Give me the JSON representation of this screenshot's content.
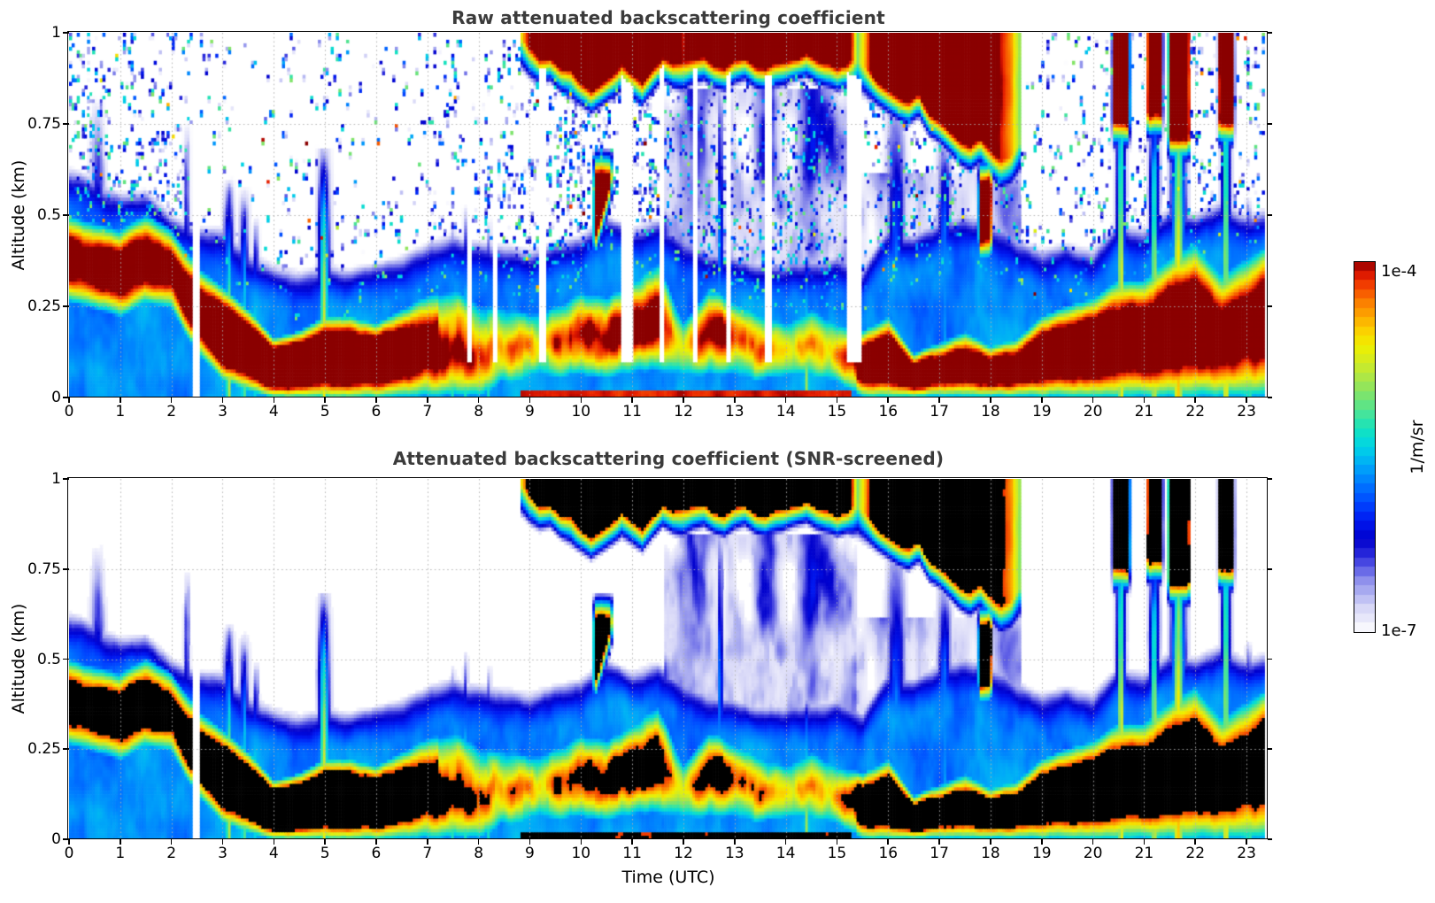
{
  "figure": {
    "background": "#ffffff",
    "title_color": "#3b3b3b"
  },
  "panels": {
    "raw": {
      "title": "Raw attenuated backscattering coefficient"
    },
    "screened": {
      "title": "Attenuated backscattering coefficient (SNR-screened)"
    }
  },
  "axes": {
    "xlabel": "Time (UTC)",
    "ylabel": "Altitude (km)",
    "xticks": [
      0,
      1,
      2,
      3,
      4,
      5,
      6,
      7,
      8,
      9,
      10,
      11,
      12,
      13,
      14,
      15,
      16,
      17,
      18,
      19,
      20,
      21,
      22,
      23
    ],
    "ytick_labels": [
      "0",
      "0.25",
      "0.5",
      "0.75",
      "1"
    ],
    "xlim": [
      0,
      23.42
    ],
    "ylim": [
      0,
      1
    ]
  },
  "colorbar": {
    "max_label": "1e-4",
    "min_label": "1e-7",
    "unit": "1/m/sr",
    "segments": 40,
    "stops": [
      [
        0.0,
        "#ffffff"
      ],
      [
        0.03,
        "#ebebfb"
      ],
      [
        0.065,
        "#d6d6f7"
      ],
      [
        0.1,
        "#b4b6f2"
      ],
      [
        0.135,
        "#9193ec"
      ],
      [
        0.17,
        "#5f5fe6"
      ],
      [
        0.205,
        "#2c2cdc"
      ],
      [
        0.25,
        "#0000cd"
      ],
      [
        0.3,
        "#0018f0"
      ],
      [
        0.35,
        "#0048ff"
      ],
      [
        0.4,
        "#007aff"
      ],
      [
        0.45,
        "#00aaf8"
      ],
      [
        0.5,
        "#00d4e6"
      ],
      [
        0.545,
        "#12e2c0"
      ],
      [
        0.59,
        "#46e49a"
      ],
      [
        0.635,
        "#78e470"
      ],
      [
        0.68,
        "#a6e64c"
      ],
      [
        0.725,
        "#cfeb26"
      ],
      [
        0.77,
        "#eef000"
      ],
      [
        0.81,
        "#fbd300"
      ],
      [
        0.85,
        "#fdab00"
      ],
      [
        0.89,
        "#fb7d00"
      ],
      [
        0.925,
        "#f64e00"
      ],
      [
        0.955,
        "#e92200"
      ],
      [
        0.98,
        "#c50c00"
      ],
      [
        1.0,
        "#8b0000"
      ]
    ],
    "raw_over_color": "#8b0000",
    "screened_over_color": "#000000"
  },
  "chart_data": {
    "type": "heatmap",
    "x": {
      "label": "Time (UTC)",
      "unit": "hours",
      "range": [
        0,
        23.42
      ],
      "data_end": 23.35
    },
    "y": {
      "label": "Altitude (km)",
      "range": [
        0,
        1
      ]
    },
    "value": {
      "label": "1/m/sr",
      "scale": "log10",
      "vmin_log": -7,
      "vmax_log": -4,
      "min_label": "1e-7",
      "max_label": "1e-4"
    },
    "panel_list": [
      {
        "id": "raw",
        "title": "Raw attenuated backscattering coefficient",
        "noise": true,
        "over": "darkred"
      },
      {
        "id": "screened",
        "title": "Attenuated backscattering coefficient (SNR-screened)",
        "noise": false,
        "over": "black"
      }
    ],
    "features": {
      "time_step_h": 0.5,
      "bl_top_km": [
        0.56,
        0.54,
        0.5,
        0.5,
        0.44,
        0.4,
        0.4,
        0.34,
        0.3,
        0.28,
        0.3,
        0.28,
        0.3,
        0.32,
        0.36,
        0.38,
        0.36,
        0.35,
        0.34,
        0.36,
        0.38,
        0.44,
        0.4,
        0.42,
        0.38,
        0.34,
        0.32,
        0.3,
        0.3,
        0.32,
        0.32,
        0.28,
        0.4,
        0.38,
        0.42,
        0.45,
        0.42,
        0.38,
        0.34,
        0.36,
        0.34,
        0.42,
        0.4,
        0.46,
        0.44,
        0.48,
        0.44,
        0.46
      ],
      "aerosol_top_km": [
        0.5,
        0.48,
        0.46,
        0.5,
        0.46,
        0.36,
        0.3,
        0.24,
        0.16,
        0.18,
        0.22,
        0.22,
        0.2,
        0.24,
        0.28,
        0.3,
        0.27,
        0.26,
        0.24,
        0.26,
        0.3,
        0.28,
        0.32,
        0.38,
        0.22,
        0.3,
        0.28,
        0.24,
        0.22,
        0.26,
        0.22,
        0.18,
        0.22,
        0.12,
        0.15,
        0.18,
        0.14,
        0.16,
        0.22,
        0.25,
        0.27,
        0.32,
        0.32,
        0.38,
        0.42,
        0.34,
        0.38,
        0.42
      ],
      "aerosol_base_km": [
        0.26,
        0.24,
        0.22,
        0.26,
        0.24,
        0.12,
        0.05,
        0.02,
        0,
        0,
        0,
        0,
        0,
        0,
        0,
        0,
        0,
        0.02,
        0.04,
        0.04,
        0.05,
        0.04,
        0.05,
        0.06,
        0.04,
        0.05,
        0.04,
        0.04,
        0.04,
        0.04,
        0.03,
        0,
        0,
        0,
        0,
        0,
        0,
        0,
        0,
        0,
        0,
        0,
        0,
        0,
        0,
        0,
        0,
        0
      ],
      "aerosol_intensity": [
        1.0,
        1.02,
        1.05,
        1.06,
        1.04,
        1.12,
        1.22,
        1.26,
        1.3,
        1.3,
        1.3,
        1.3,
        1.3,
        1.15,
        1.05,
        1.08,
        1.04,
        0.95,
        0.9,
        0.93,
        0.97,
        0.92,
        0.96,
        1.02,
        0.75,
        0.92,
        0.88,
        0.84,
        0.8,
        0.88,
        0.84,
        1.18,
        1.22,
        1.18,
        1.12,
        1.1,
        1.12,
        1.1,
        1.14,
        1.18,
        1.2,
        1.16,
        1.18,
        1.16,
        1.2,
        1.05,
        1.12,
        1.16
      ],
      "noise_density": [
        0.45,
        0.5,
        0.45,
        0.4,
        0.42,
        0.18,
        0.12,
        0.12,
        0.1,
        0.12,
        0.12,
        0.1,
        0.1,
        0.12,
        0.2,
        0.25,
        0.3,
        0.4,
        0.5,
        0.52,
        0.55,
        0.5,
        0.52,
        0.5,
        0.52,
        0.55,
        0.5,
        0.52,
        0.5,
        0.48,
        0.5,
        0.4,
        0.42,
        0.45,
        0.4,
        0.42,
        0.38,
        0.3,
        0.28,
        0.25,
        0.22,
        0.3,
        0.28,
        0.3,
        0.28,
        0.3,
        0.3,
        0.28
      ],
      "cloud_deck": {
        "t_start": 8.8,
        "t_end": 18.6,
        "t_step": 0.2,
        "top_km": 1.0,
        "base_km": [
          0.99,
          0.96,
          0.94,
          0.95,
          0.92,
          0.9,
          0.88,
          0.86,
          0.88,
          0.9,
          0.92,
          0.9,
          0.88,
          0.92,
          0.95,
          0.93,
          0.92,
          0.94,
          0.95,
          0.93,
          0.92,
          0.94,
          0.95,
          0.93,
          0.92,
          0.93,
          0.94,
          0.95,
          0.96,
          0.94,
          0.93,
          0.92,
          0.93,
          0.92,
          0.9,
          0.88,
          0.86,
          0.84,
          0.83,
          0.85,
          0.8,
          0.78,
          0.75,
          0.72,
          0.7,
          0.72,
          0.68,
          0.65,
          0.66,
          0.7
        ],
        "intensity": [
          0.55,
          0.9,
          1.0,
          1.05,
          1.05,
          0.85,
          1.0,
          1.05,
          1.08,
          1.05,
          0.95,
          1.0,
          1.05,
          1.08,
          1.05,
          1.0,
          0.8,
          1.0,
          1.05,
          1.08,
          1.05,
          1.0,
          1.05,
          1.08,
          1.05,
          1.02,
          1.05,
          1.08,
          1.05,
          1.02,
          1.0,
          1.05,
          1.02,
          0.5,
          0.75,
          1.0,
          1.05,
          1.05,
          1.08,
          1.05,
          1.05,
          1.08,
          1.05,
          1.0,
          0.95,
          0.9,
          0.85,
          0.8,
          0.7,
          0.5
        ]
      },
      "cloud_fragments": [
        {
          "t0": 20.42,
          "t1": 20.68,
          "base": 0.76,
          "top": 1.0,
          "slope": 0
        },
        {
          "t0": 21.08,
          "t1": 21.32,
          "base": 0.78,
          "top": 1.0,
          "slope": 0
        },
        {
          "t0": 21.5,
          "t1": 21.86,
          "base": 0.72,
          "top": 1.0,
          "slope": 0
        },
        {
          "t0": 22.48,
          "t1": 22.72,
          "base": 0.76,
          "top": 1.0,
          "slope": 0
        },
        {
          "t0": 17.8,
          "t1": 18.0,
          "base": 0.44,
          "top": 0.58,
          "slope": 0
        },
        {
          "t0": 10.28,
          "t1": 10.58,
          "base": 0.45,
          "top": 0.6,
          "slope": 0.5
        }
      ],
      "plumes": [
        {
          "t": 0.55,
          "w": 0.2,
          "top": 1.02,
          "v": -5.85,
          "narrow": true
        },
        {
          "t": 2.3,
          "w": 0.05,
          "top": 0.96,
          "v": -5.9
        },
        {
          "t": 3.12,
          "w": 0.09,
          "top": 0.6,
          "v": -5.1
        },
        {
          "t": 3.42,
          "w": 0.08,
          "top": 0.58,
          "v": -5.15
        },
        {
          "t": 3.65,
          "w": 0.05,
          "top": 0.5,
          "v": -5.25
        },
        {
          "t": 4.98,
          "w": 0.1,
          "top": 0.68,
          "v": -4.75
        },
        {
          "t": 7.5,
          "w": 0.04,
          "top": 0.5,
          "v": -5.3
        },
        {
          "t": 7.75,
          "w": 0.04,
          "top": 0.55,
          "v": -5.35
        },
        {
          "t": 8.2,
          "w": 0.04,
          "top": 0.52,
          "v": -5.35
        },
        {
          "t": 12.72,
          "w": 0.05,
          "top": 0.98,
          "v": -5.5
        },
        {
          "t": 14.42,
          "w": 0.06,
          "top": 0.4,
          "v": -4.95
        },
        {
          "t": 16.15,
          "w": 0.16,
          "top": 1.0,
          "v": -5.7
        },
        {
          "t": 17.1,
          "w": 0.12,
          "top": 0.88,
          "v": -5.6
        },
        {
          "t": 20.55,
          "w": 0.08,
          "top": 1.0,
          "v": -4.7
        },
        {
          "t": 21.2,
          "w": 0.09,
          "top": 0.92,
          "v": -4.85
        },
        {
          "t": 21.67,
          "w": 0.13,
          "top": 1.0,
          "v": -4.55
        },
        {
          "t": 22.6,
          "w": 0.08,
          "top": 1.0,
          "v": -4.7
        },
        {
          "t": 23.05,
          "w": 0.06,
          "top": 0.55,
          "v": -5.05
        }
      ],
      "data_gaps": [
        [
          2.42,
          2.54
        ]
      ],
      "screened_columns": [
        [
          7.78,
          7.88
        ],
        [
          8.28,
          8.38
        ],
        [
          9.18,
          9.3
        ],
        [
          10.78,
          11.0
        ],
        [
          11.5,
          11.62
        ],
        [
          12.2,
          12.3
        ],
        [
          12.82,
          12.94
        ],
        [
          13.6,
          13.72
        ],
        [
          15.18,
          15.48
        ]
      ],
      "haze_windows": [
        [
          11.6,
          15.4,
          0.85,
          0.85
        ],
        [
          15.3,
          18.6,
          0.62,
          0.55
        ]
      ],
      "overlap_strip": {
        "t0": 2.6,
        "t1": 6.8,
        "z_top": 0.045
      },
      "surface_line": {
        "t0": 8.8,
        "t1": 15.3,
        "z_top": 0.015
      },
      "blob_window": [
        7.2,
        15.4
      ]
    }
  }
}
